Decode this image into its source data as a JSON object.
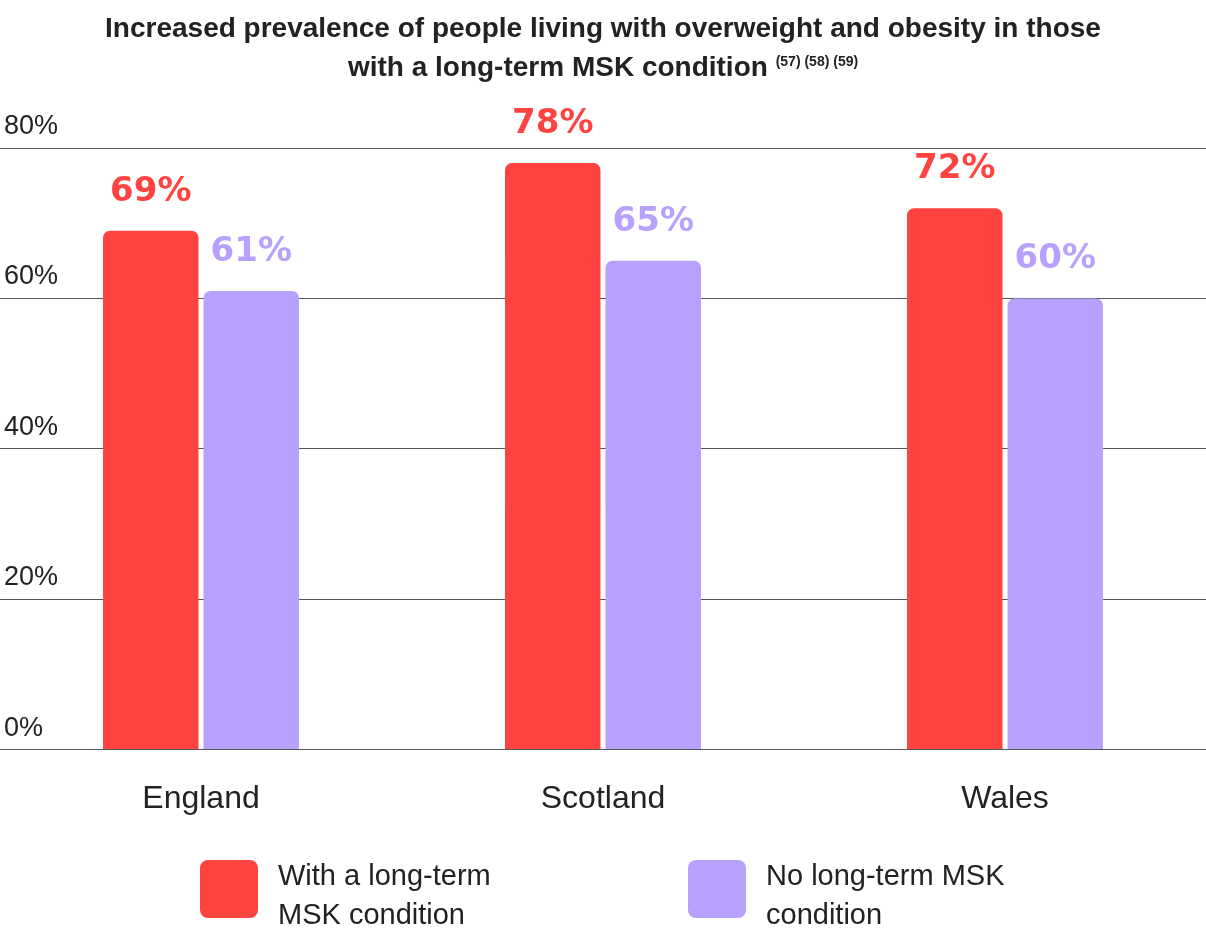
{
  "chart_data": {
    "type": "bar",
    "title": "Increased prevalence of people living with overweight and obesity in those with a long-term MSK condition $^{(57) (58) (59)}$",
    "categories": [
      "England",
      "Scotland",
      "Wales"
    ],
    "series": [
      {
        "name": "With a long-term MSK condition",
        "color": "#ff4340",
        "values": [
          69,
          78,
          72
        ],
        "value_labels": [
          "69%",
          "78%",
          "72%"
        ]
      },
      {
        "name": "No long-term MSK condition",
        "color": "#b8a0fd",
        "values": [
          61,
          65,
          60
        ],
        "value_labels": [
          "61%",
          "65%",
          "60%"
        ]
      }
    ],
    "ylim": [
      0,
      80
    ],
    "yticks": [
      {
        "value": 0,
        "label": "0%"
      },
      {
        "value": 20,
        "label": "20%"
      },
      {
        "value": 40,
        "label": "40%"
      },
      {
        "value": 60,
        "label": "60%"
      },
      {
        "value": 80,
        "label": "80%"
      }
    ],
    "grid": "y",
    "legend": "bottom"
  }
}
